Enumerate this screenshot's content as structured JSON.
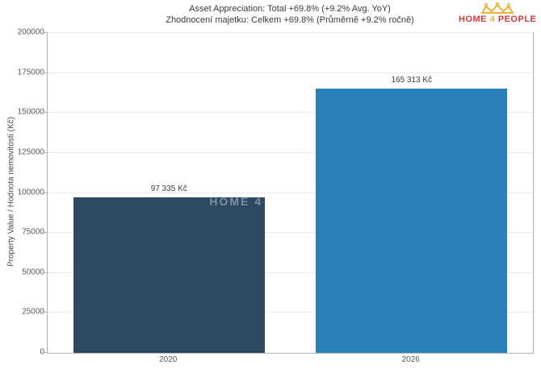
{
  "header": {
    "logo": {
      "word1": "HOME",
      "word2": "4",
      "word3": "PEOPLE",
      "red": "#d23939",
      "gold": "#eeb033",
      "crown_icon": "crown-icon"
    }
  },
  "chart_data": {
    "type": "bar",
    "title_en": "Asset Appreciation: Total +69.8% (+9.2% Avg. YoY)",
    "title_cs": "Zhodnocení majetku: Celkem +69.8% (Průměrně +9.2% ročně)",
    "ylabel": "Property Value / Hodnota nemovitosti (Kč)",
    "categories": [
      "2020",
      "2026"
    ],
    "values": [
      97335,
      165313
    ],
    "value_labels": [
      "97 335 Kč",
      "165 313 Kč"
    ],
    "bar_colors": [
      "#2e4a63",
      "#2b80b9"
    ],
    "ylim": [
      0,
      200000
    ],
    "yticks": [
      0,
      25000,
      50000,
      75000,
      100000,
      125000,
      150000,
      175000,
      200000
    ],
    "grid": true,
    "legend": "none",
    "watermark": "HOME 4"
  }
}
